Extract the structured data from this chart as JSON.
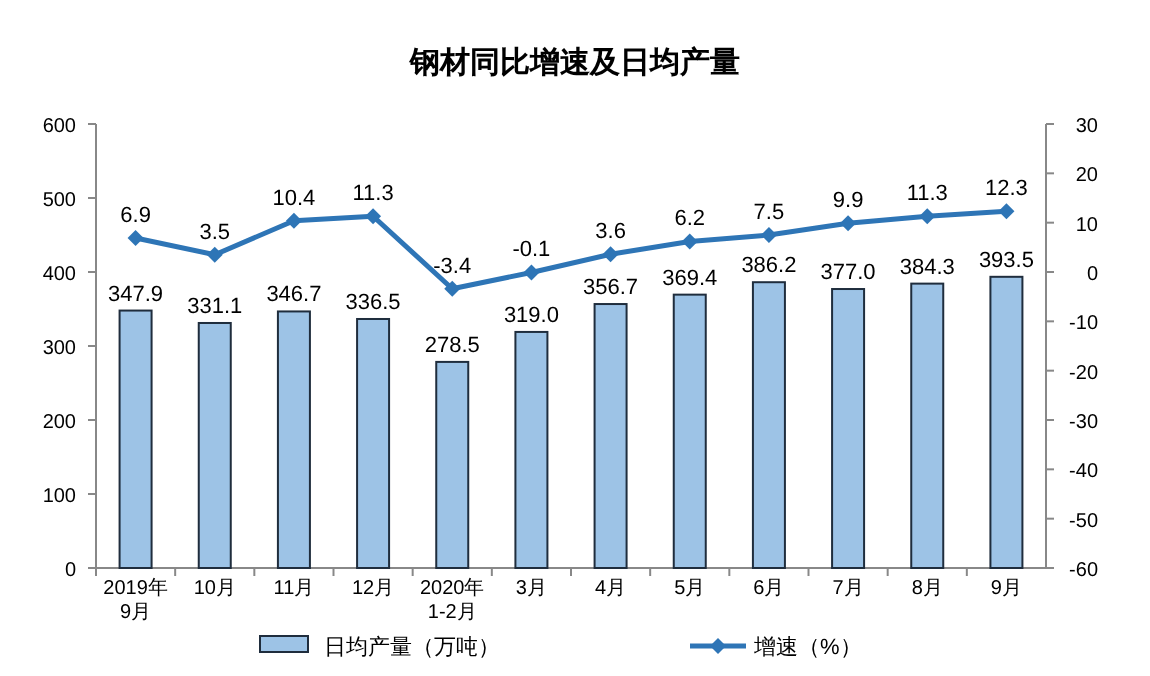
{
  "chart_data": {
    "type": "bar",
    "title": "钢材同比增速及日均产量",
    "categories": [
      "2019年\n9月",
      "10月",
      "11月",
      "12月",
      "2020年\n1-2月",
      "3月",
      "4月",
      "5月",
      "6月",
      "7月",
      "8月",
      "9月"
    ],
    "series": [
      {
        "name": "日均产量（万吨）",
        "color": "#9dc3e6",
        "values": [
          347.9,
          331.1,
          346.7,
          336.5,
          278.5,
          319.0,
          356.7,
          369.4,
          386.2,
          377.0,
          384.3,
          393.5
        ],
        "value_labels": [
          "347.9",
          "331.1",
          "346.7",
          "336.5",
          "278.5",
          "319.0",
          "356.7",
          "369.4",
          "386.2",
          "377.0",
          "384.3",
          "393.5"
        ]
      },
      {
        "name": "增速（%）",
        "type": "line",
        "axis": "y2",
        "color": "#2e75b6",
        "marker": "diamond",
        "values": [
          6.9,
          3.5,
          10.4,
          11.3,
          -3.4,
          -0.1,
          3.6,
          6.2,
          7.5,
          9.9,
          11.3,
          12.3
        ],
        "value_labels": [
          "6.9",
          "3.5",
          "10.4",
          "11.3",
          "-3.4",
          "-0.1",
          "3.6",
          "6.2",
          "7.5",
          "9.9",
          "11.3",
          "12.3"
        ]
      }
    ],
    "ylim": [
      0,
      600
    ],
    "yticks": [
      0,
      100,
      200,
      300,
      400,
      500,
      600
    ],
    "y2lim": [
      -60,
      30
    ],
    "y2ticks": [
      -60,
      -50,
      -40,
      -30,
      -20,
      -10,
      0,
      10,
      20,
      30
    ],
    "grid": false,
    "legend": "bottom"
  }
}
